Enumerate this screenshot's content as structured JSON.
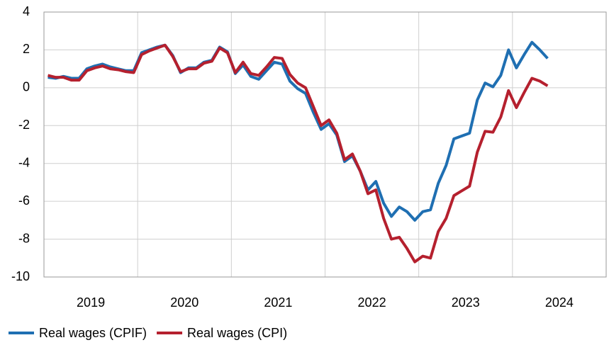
{
  "chart_data": {
    "type": "line",
    "x": [
      2019.042,
      2019.125,
      2019.208,
      2019.292,
      2019.375,
      2019.458,
      2019.542,
      2019.625,
      2019.708,
      2019.792,
      2019.875,
      2019.958,
      2020.042,
      2020.125,
      2020.208,
      2020.292,
      2020.375,
      2020.458,
      2020.542,
      2020.625,
      2020.708,
      2020.792,
      2020.875,
      2020.958,
      2021.042,
      2021.125,
      2021.208,
      2021.292,
      2021.375,
      2021.458,
      2021.542,
      2021.625,
      2021.708,
      2021.792,
      2021.875,
      2021.958,
      2022.042,
      2022.125,
      2022.208,
      2022.292,
      2022.375,
      2022.458,
      2022.542,
      2022.625,
      2022.708,
      2022.792,
      2022.875,
      2022.958,
      2023.042,
      2023.125,
      2023.208,
      2023.292,
      2023.375,
      2023.458,
      2023.542,
      2023.625,
      2023.708,
      2023.792,
      2023.875,
      2023.958,
      2024.042,
      2024.125,
      2024.208,
      2024.292,
      2024.375
    ],
    "series": [
      {
        "name": "Real wages (CPIF)",
        "color": "#1f6fb2",
        "values": [
          0.55,
          0.5,
          0.6,
          0.5,
          0.5,
          1.0,
          1.15,
          1.25,
          1.1,
          1.0,
          0.9,
          0.9,
          1.85,
          2.0,
          2.15,
          2.25,
          1.7,
          0.8,
          1.05,
          1.05,
          1.35,
          1.45,
          2.15,
          1.9,
          0.75,
          1.2,
          0.6,
          0.45,
          0.9,
          1.35,
          1.25,
          0.35,
          -0.05,
          -0.3,
          -1.3,
          -2.2,
          -1.9,
          -2.5,
          -3.9,
          -3.6,
          -4.4,
          -5.4,
          -4.95,
          -6.1,
          -6.8,
          -6.3,
          -6.55,
          -7.0,
          -6.55,
          -6.45,
          -5.05,
          -4.1,
          -2.7,
          -2.55,
          -2.4,
          -0.65,
          0.25,
          0.05,
          0.65,
          2.0,
          1.05,
          1.75,
          2.4,
          2.0,
          1.55
        ]
      },
      {
        "name": "Real wages (CPI)",
        "color": "#b5202e",
        "values": [
          0.65,
          0.55,
          0.55,
          0.4,
          0.4,
          0.9,
          1.05,
          1.15,
          1.0,
          0.95,
          0.85,
          0.8,
          1.75,
          1.95,
          2.1,
          2.25,
          1.65,
          0.85,
          1.0,
          1.0,
          1.3,
          1.4,
          2.1,
          1.85,
          0.8,
          1.35,
          0.75,
          0.65,
          1.1,
          1.6,
          1.55,
          0.7,
          0.25,
          0.0,
          -1.0,
          -2.0,
          -1.7,
          -2.4,
          -3.8,
          -3.5,
          -4.4,
          -5.6,
          -5.4,
          -6.9,
          -8.0,
          -7.9,
          -8.5,
          -9.2,
          -8.9,
          -9.0,
          -7.6,
          -6.9,
          -5.7,
          -5.45,
          -5.2,
          -3.4,
          -2.3,
          -2.35,
          -1.55,
          -0.15,
          -1.05,
          -0.25,
          0.5,
          0.35,
          0.1
        ]
      }
    ],
    "xlim": [
      2019,
      2025
    ],
    "xticks": [
      2019,
      2020,
      2021,
      2022,
      2023,
      2024
    ],
    "ylim": [
      -10,
      4
    ],
    "yticks": [
      -10,
      -8,
      -6,
      -4,
      -2,
      0,
      2,
      4
    ],
    "grid": true,
    "legend": "bottom-left"
  }
}
